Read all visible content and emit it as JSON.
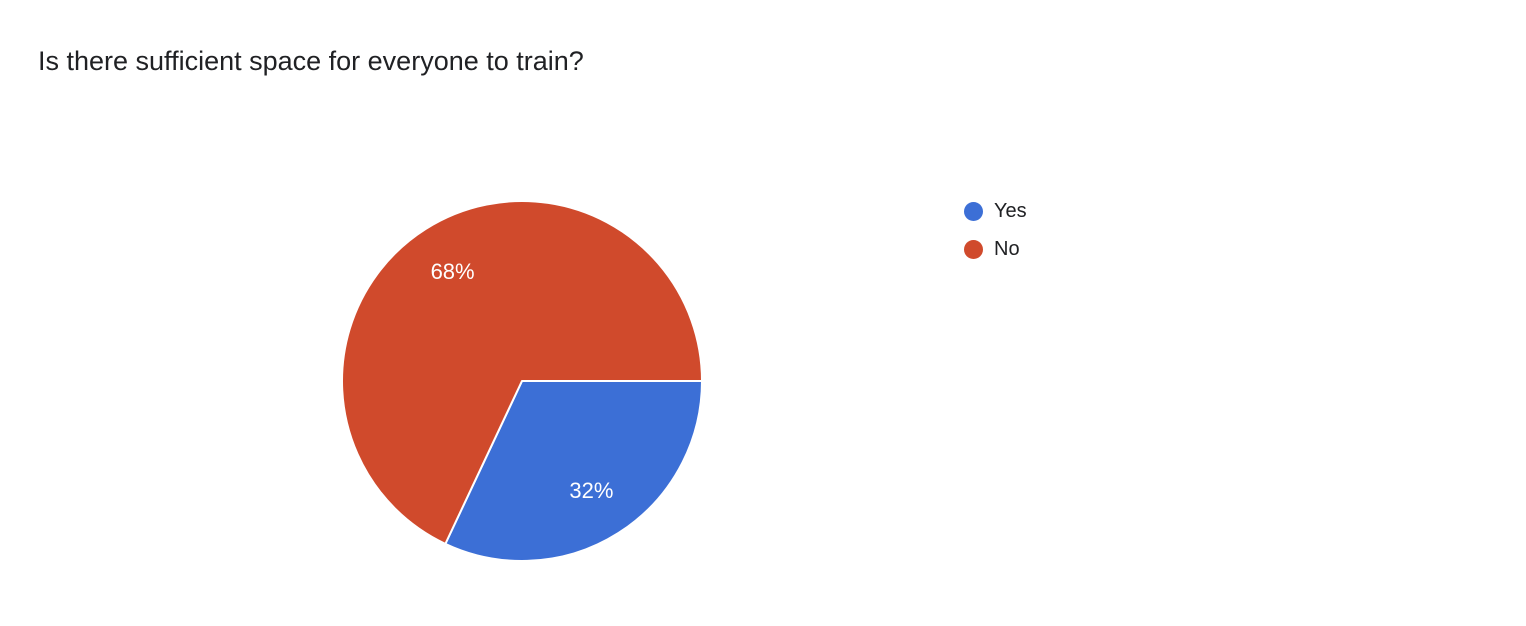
{
  "page": {
    "background": "#ffffff",
    "title": "Is there sufficient space for everyone to train?"
  },
  "chart_data": {
    "type": "pie",
    "title": "Is there sufficient space for everyone to train?",
    "categories": [
      "Yes",
      "No"
    ],
    "values": [
      32,
      68
    ],
    "value_unit": "%",
    "slice_labels": [
      "32%",
      "68%"
    ],
    "colors": [
      "#3c6fd6",
      "#d04a2c"
    ],
    "label_color": "#ffffff",
    "slice_border_color": "#ffffff",
    "start_angle": "east",
    "direction": "clockwise",
    "legend_position": "right",
    "legend": [
      {
        "label": "Yes",
        "color": "#3c6fd6"
      },
      {
        "label": "No",
        "color": "#d04a2c"
      }
    ]
  }
}
